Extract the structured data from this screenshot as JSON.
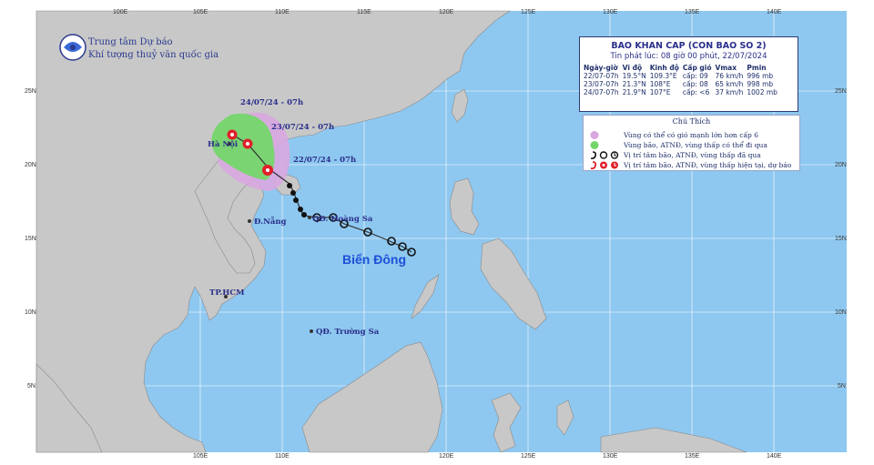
{
  "header": {
    "agency_line1": "Trung tâm Dự báo",
    "agency_line2": "Khí tượng thuỷ văn quốc gia"
  },
  "axis": {
    "top_labels": [
      "100E",
      "105E",
      "110E",
      "115E",
      "120E",
      "125E",
      "130E",
      "135E",
      "140E"
    ],
    "bottom_labels": [
      "105E",
      "110E",
      "120E",
      "125E",
      "130E",
      "135E",
      "140E"
    ],
    "lat_labels": [
      "25N",
      "20N",
      "15N",
      "10N",
      "5N"
    ]
  },
  "bulletin": {
    "title": "BAO KHAN CAP (CON BAO SO 2)",
    "issued": "Tin phát lúc: 08 giờ 00 phút, 22/07/2024",
    "columns": [
      "Ngày-giờ",
      "Vĩ độ",
      "Kinh độ",
      "Cấp gió",
      "Vmax",
      "Pmin"
    ],
    "rows": [
      [
        "22/07-07h",
        "19.5°N",
        "109.3°E",
        "cấp: 09",
        "76 km/h",
        "996 mb"
      ],
      [
        "23/07-07h",
        "21.3°N",
        "108°E",
        "cấp: 08",
        "65 km/h",
        "998 mb"
      ],
      [
        "24/07-07h",
        "21.9°N",
        "107°E",
        "cấp: <6",
        "37 km/h",
        "1002 mb"
      ]
    ]
  },
  "legend": {
    "title": "Chú Thích",
    "items": [
      "Vùng có thể có gió mạnh lớn hơn cấp 6",
      "Vùng bão, ATNĐ, vùng thấp có thể đi qua",
      "Vị trí tâm bão, ATNĐ, vùng thấp đã qua",
      "Vị trí tâm bão, ATNĐ, vùng thấp hiện tại, dự báo"
    ],
    "colors": {
      "strong_wind": "#d9a7e0",
      "storm_area": "#74d66a",
      "past": "#111111",
      "current": "#e0202a"
    }
  },
  "labels": {
    "date_1": "24/07/24 - 07h",
    "date_2": "23/07/24 - 07h",
    "date_3": "22/07/24 - 07h",
    "hanoi": "Hà Nội",
    "danang": "Đ.Nẵng",
    "hoangsa": "QĐ. Hoàng Sa",
    "hcm": "TP.HCM",
    "truongsa": "QĐ. Trường Sa",
    "sea": "Biển Đông"
  },
  "colors": {
    "ocean": "#8ec8f0",
    "land": "#c8c8c8",
    "title_blue": "#2a2f8a",
    "sea_label": "#1f4fd8"
  }
}
